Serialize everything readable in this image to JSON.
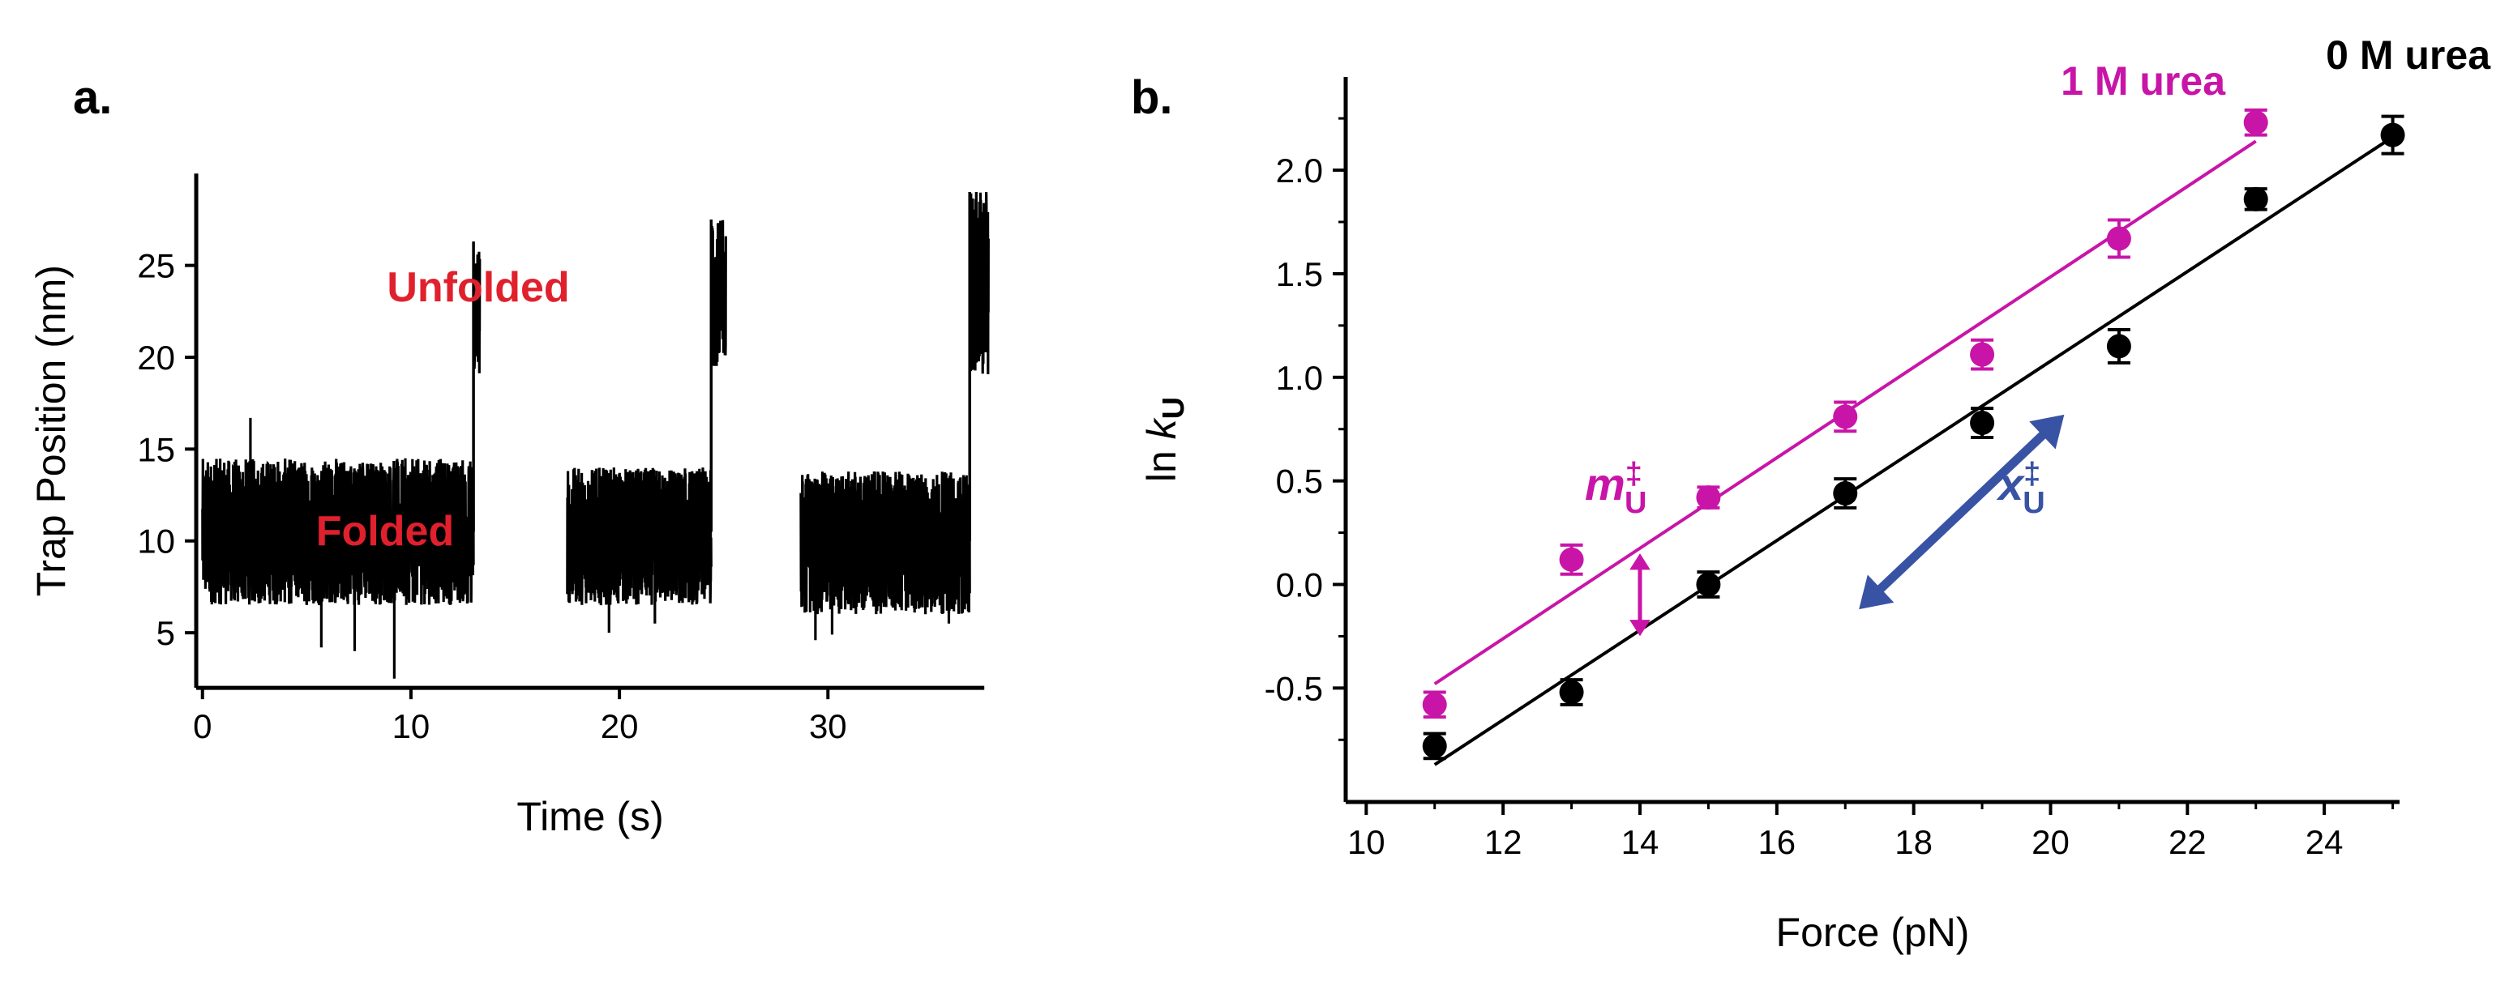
{
  "panels": {
    "a": {
      "letter": "a."
    },
    "b": {
      "letter": "b."
    }
  },
  "colors": {
    "black": "#000000",
    "magenta": "#c815a8",
    "red": "#e0202c",
    "blue": "#3953a4"
  },
  "chart_data": [
    {
      "id": "a",
      "type": "line",
      "title": "",
      "xlabel": "Time (s)",
      "ylabel": "Trap Position (nm)",
      "xlim": [
        -0.3,
        37.5
      ],
      "ylim": [
        2,
        30
      ],
      "xticks": [
        0,
        10,
        20,
        30
      ],
      "yticks": [
        5,
        10,
        15,
        20,
        25
      ],
      "grid": false,
      "annotations": [
        {
          "text": "Unfolded",
          "x": 13,
          "y": 24,
          "color": "#e0202c"
        },
        {
          "text": "Folded",
          "x": 8.5,
          "y": 10.5,
          "color": "#e0202c"
        }
      ],
      "segments": [
        {
          "state": "folded",
          "t_start": 0.0,
          "t_end": 13.0,
          "mean": 10.5,
          "noise_low": 6.5,
          "noise_high": 14.5,
          "spikes": [
            [
              2.3,
              16.7
            ],
            [
              7.3,
              4.0
            ],
            [
              9.2,
              2.5
            ],
            [
              5.7,
              4.2
            ]
          ]
        },
        {
          "state": "unfolded",
          "t_start": 13.0,
          "t_end": 13.3,
          "mean": 22.5,
          "noise_low": 19.0,
          "noise_high": 26.3
        },
        {
          "state": "folded",
          "t_start": 17.5,
          "t_end": 24.4,
          "mean": 10.5,
          "noise_low": 6.5,
          "noise_high": 14.0,
          "spikes": [
            [
              19.5,
              5.0
            ],
            [
              21.7,
              5.5
            ]
          ]
        },
        {
          "state": "unfolded",
          "t_start": 24.4,
          "t_end": 25.1,
          "mean": 24.0,
          "noise_low": 19.5,
          "noise_high": 27.5
        },
        {
          "state": "folded",
          "t_start": 28.7,
          "t_end": 36.8,
          "mean": 10.0,
          "noise_low": 6.0,
          "noise_high": 13.8,
          "spikes": [
            [
              29.4,
              4.6
            ],
            [
              30.2,
              4.9
            ],
            [
              35.8,
              5.5
            ]
          ]
        },
        {
          "state": "unfolded",
          "t_start": 36.8,
          "t_end": 37.7,
          "mean": 23.5,
          "noise_low": 19.0,
          "noise_high": 29.0
        }
      ]
    },
    {
      "id": "b",
      "type": "scatter",
      "title": "",
      "xlabel": "Force (pN)",
      "ylabel": "ln k",
      "ylabel_sub": "U",
      "xlim": [
        9.7,
        25.1
      ],
      "ylim": [
        -1.05,
        2.45
      ],
      "xticks": [
        10,
        12,
        14,
        16,
        18,
        20,
        22,
        24
      ],
      "yticks": [
        -0.5,
        0.0,
        0.5,
        1.0,
        1.5,
        2.0
      ],
      "ytick_labels": [
        "-0.5",
        "0.0",
        "0.5",
        "1.0",
        "1.5",
        "2.0"
      ],
      "grid": false,
      "series": [
        {
          "name": "0 M urea",
          "color": "#000000",
          "x": [
            11,
            13,
            15,
            17,
            19,
            21,
            23,
            25
          ],
          "y": [
            -0.78,
            -0.52,
            0.0,
            0.44,
            0.78,
            1.15,
            1.86,
            2.17
          ],
          "err": [
            0.06,
            0.06,
            0.06,
            0.07,
            0.07,
            0.08,
            0.05,
            0.09
          ],
          "fit": {
            "x": [
              11,
              25
            ],
            "y": [
              -0.87,
              2.16
            ]
          }
        },
        {
          "name": "1 M urea",
          "color": "#c815a8",
          "x": [
            11,
            13,
            15,
            17,
            19,
            21,
            23
          ],
          "y": [
            -0.58,
            0.12,
            0.42,
            0.81,
            1.11,
            1.67,
            2.23
          ],
          "err": [
            0.06,
            0.07,
            0.05,
            0.07,
            0.07,
            0.09,
            0.06
          ],
          "fit": {
            "x": [
              11,
              23
            ],
            "y": [
              -0.48,
              2.14
            ]
          }
        }
      ],
      "annotations": [
        {
          "text": "m",
          "sup": "‡",
          "sub": "U",
          "color": "#c815a8",
          "x": 13.6,
          "y": 0.42
        },
        {
          "text": "x",
          "sup": "‡",
          "sub": "U",
          "color": "#3953a4",
          "x": 19.9,
          "y": 0.38
        }
      ],
      "arrows": [
        {
          "name": "m-arrow",
          "color": "#c815a8",
          "x1": 14.0,
          "y1": 0.15,
          "x2": 14.0,
          "y2": -0.25,
          "double": true
        },
        {
          "name": "x-arrow",
          "color": "#3953a4",
          "x1": 17.2,
          "y1": -0.12,
          "x2": 20.2,
          "y2": 0.82,
          "double": true
        }
      ]
    }
  ]
}
